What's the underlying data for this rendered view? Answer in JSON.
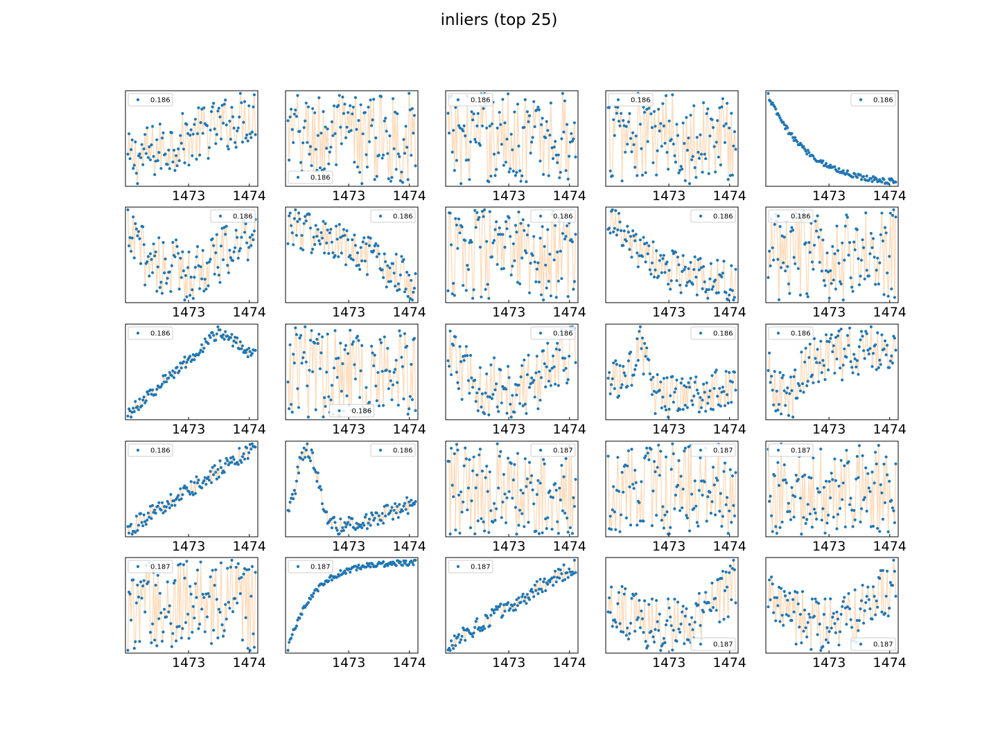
{
  "figure": {
    "title": "inliers (top 25)",
    "colors": {
      "line": "#ffdab9",
      "marker": "#1f77b4",
      "frame": "#000000",
      "legend_border": "#cccccc"
    }
  },
  "chart_data": [
    {
      "type": "line",
      "xticks": [
        "1473",
        "1474"
      ],
      "legend_loc": "upper left",
      "series": [
        {
          "name": "0.186",
          "shape": "noisy-rising",
          "x_range": [
            1472.0,
            1474.1
          ],
          "y_range": [
            0,
            1
          ],
          "n": 120
        }
      ]
    },
    {
      "type": "line",
      "xticks": [
        "1473",
        "1474"
      ],
      "legend_loc": "lower left",
      "series": [
        {
          "name": "0.186",
          "shape": "noisy-flat",
          "x_range": [
            1472.0,
            1474.1
          ],
          "y_range": [
            0,
            1
          ],
          "n": 120
        }
      ]
    },
    {
      "type": "line",
      "xticks": [
        "1473",
        "1474"
      ],
      "legend_loc": "upper left",
      "series": [
        {
          "name": "0.186",
          "shape": "noisy-flat",
          "x_range": [
            1472.0,
            1474.1
          ],
          "y_range": [
            0,
            1
          ],
          "n": 120
        }
      ]
    },
    {
      "type": "line",
      "xticks": [
        "1473",
        "1474"
      ],
      "legend_loc": "upper left",
      "series": [
        {
          "name": "0.186",
          "shape": "noisy-flat",
          "x_range": [
            1472.0,
            1474.1
          ],
          "y_range": [
            0,
            1
          ],
          "n": 120
        }
      ]
    },
    {
      "type": "line",
      "xticks": [
        "1473",
        "1474"
      ],
      "legend_loc": "upper right",
      "series": [
        {
          "name": "0.186",
          "shape": "decay",
          "x_range": [
            1472.0,
            1474.1
          ],
          "y_range": [
            0,
            1
          ],
          "n": 120
        }
      ]
    },
    {
      "type": "line",
      "xticks": [
        "1473",
        "1474"
      ],
      "legend_loc": "upper right",
      "series": [
        {
          "name": "0.186",
          "shape": "valley",
          "x_range": [
            1472.0,
            1474.1
          ],
          "y_range": [
            0,
            1
          ],
          "n": 120
        }
      ]
    },
    {
      "type": "line",
      "xticks": [
        "1473",
        "1474"
      ],
      "legend_loc": "upper right",
      "series": [
        {
          "name": "0.186",
          "shape": "falling",
          "x_range": [
            1472.0,
            1474.1
          ],
          "y_range": [
            0,
            1
          ],
          "n": 120
        }
      ]
    },
    {
      "type": "line",
      "xticks": [
        "1473",
        "1474"
      ],
      "legend_loc": "upper right",
      "series": [
        {
          "name": "0.186",
          "shape": "noisy-flat",
          "x_range": [
            1472.0,
            1474.1
          ],
          "y_range": [
            0,
            1
          ],
          "n": 120
        }
      ]
    },
    {
      "type": "line",
      "xticks": [
        "1473",
        "1474"
      ],
      "legend_loc": "upper right",
      "series": [
        {
          "name": "0.186",
          "shape": "decay-noisy",
          "x_range": [
            1472.0,
            1474.1
          ],
          "y_range": [
            0,
            1
          ],
          "n": 120
        }
      ]
    },
    {
      "type": "line",
      "xticks": [
        "1473",
        "1474"
      ],
      "legend_loc": "upper left",
      "series": [
        {
          "name": "0.186",
          "shape": "noisy-flat",
          "x_range": [
            1472.0,
            1474.1
          ],
          "y_range": [
            0,
            1
          ],
          "n": 120
        }
      ]
    },
    {
      "type": "line",
      "xticks": [
        "1473",
        "1474"
      ],
      "legend_loc": "upper left",
      "series": [
        {
          "name": "0.186",
          "shape": "rise-then-dip",
          "x_range": [
            1472.0,
            1474.1
          ],
          "y_range": [
            0,
            1
          ],
          "n": 120
        }
      ]
    },
    {
      "type": "line",
      "xticks": [
        "1473",
        "1474"
      ],
      "legend_loc": "lower center",
      "series": [
        {
          "name": "0.186",
          "shape": "noisy-flat",
          "x_range": [
            1472.0,
            1474.1
          ],
          "y_range": [
            0,
            1
          ],
          "n": 120
        }
      ]
    },
    {
      "type": "line",
      "xticks": [
        "1473",
        "1474"
      ],
      "legend_loc": "upper right",
      "series": [
        {
          "name": "0.186",
          "shape": "valley",
          "x_range": [
            1472.0,
            1474.1
          ],
          "y_range": [
            0,
            1
          ],
          "n": 120
        }
      ]
    },
    {
      "type": "line",
      "xticks": [
        "1473",
        "1474"
      ],
      "legend_loc": "upper right",
      "series": [
        {
          "name": "0.186",
          "shape": "bump-then-valley",
          "x_range": [
            1472.0,
            1474.1
          ],
          "y_range": [
            0,
            1
          ],
          "n": 120
        }
      ]
    },
    {
      "type": "line",
      "xticks": [
        "1473",
        "1474"
      ],
      "legend_loc": "upper left",
      "series": [
        {
          "name": "0.186",
          "shape": "dip-then-rise",
          "x_range": [
            1472.0,
            1474.1
          ],
          "y_range": [
            0,
            1
          ],
          "n": 120
        }
      ]
    },
    {
      "type": "line",
      "xticks": [
        "1473",
        "1474"
      ],
      "legend_loc": "upper left",
      "series": [
        {
          "name": "0.186",
          "shape": "rising",
          "x_range": [
            1472.0,
            1474.1
          ],
          "y_range": [
            0,
            1
          ],
          "n": 120
        }
      ]
    },
    {
      "type": "line",
      "xticks": [
        "1473",
        "1474"
      ],
      "legend_loc": "upper right",
      "series": [
        {
          "name": "0.186",
          "shape": "peak-then-valley",
          "x_range": [
            1472.0,
            1474.1
          ],
          "y_range": [
            0,
            1
          ],
          "n": 120
        }
      ]
    },
    {
      "type": "line",
      "xticks": [
        "1473",
        "1474"
      ],
      "legend_loc": "upper right",
      "series": [
        {
          "name": "0.187",
          "shape": "noisy-flat",
          "x_range": [
            1472.0,
            1474.1
          ],
          "y_range": [
            0,
            1
          ],
          "n": 120
        }
      ]
    },
    {
      "type": "line",
      "xticks": [
        "1473",
        "1474"
      ],
      "legend_loc": "upper right",
      "series": [
        {
          "name": "0.187",
          "shape": "noisy-flat",
          "x_range": [
            1472.0,
            1474.1
          ],
          "y_range": [
            0,
            1
          ],
          "n": 120
        }
      ]
    },
    {
      "type": "line",
      "xticks": [
        "1473",
        "1474"
      ],
      "legend_loc": "upper left",
      "series": [
        {
          "name": "0.187",
          "shape": "noisy-flat",
          "x_range": [
            1472.0,
            1474.1
          ],
          "y_range": [
            0,
            1
          ],
          "n": 120
        }
      ]
    },
    {
      "type": "line",
      "xticks": [
        "1473",
        "1474"
      ],
      "legend_loc": "upper left",
      "series": [
        {
          "name": "0.187",
          "shape": "noisy-flat",
          "x_range": [
            1472.0,
            1474.1
          ],
          "y_range": [
            0,
            1
          ],
          "n": 120
        }
      ]
    },
    {
      "type": "line",
      "xticks": [
        "1473",
        "1474"
      ],
      "legend_loc": "upper left",
      "series": [
        {
          "name": "0.187",
          "shape": "saturating-rise",
          "x_range": [
            1472.0,
            1474.1
          ],
          "y_range": [
            0,
            1
          ],
          "n": 120
        }
      ]
    },
    {
      "type": "line",
      "xticks": [
        "1473",
        "1474"
      ],
      "legend_loc": "upper left",
      "series": [
        {
          "name": "0.187",
          "shape": "rising",
          "x_range": [
            1472.0,
            1474.1
          ],
          "y_range": [
            0,
            1
          ],
          "n": 120
        }
      ]
    },
    {
      "type": "line",
      "xticks": [
        "1473",
        "1474"
      ],
      "legend_loc": "lower right",
      "series": [
        {
          "name": "0.187",
          "shape": "valley",
          "x_range": [
            1472.0,
            1474.1
          ],
          "y_range": [
            0,
            1
          ],
          "n": 120
        }
      ]
    },
    {
      "type": "line",
      "xticks": [
        "1473",
        "1474"
      ],
      "legend_loc": "lower right",
      "series": [
        {
          "name": "0.187",
          "shape": "valley",
          "x_range": [
            1472.0,
            1474.1
          ],
          "y_range": [
            0,
            1
          ],
          "n": 120
        }
      ]
    }
  ]
}
